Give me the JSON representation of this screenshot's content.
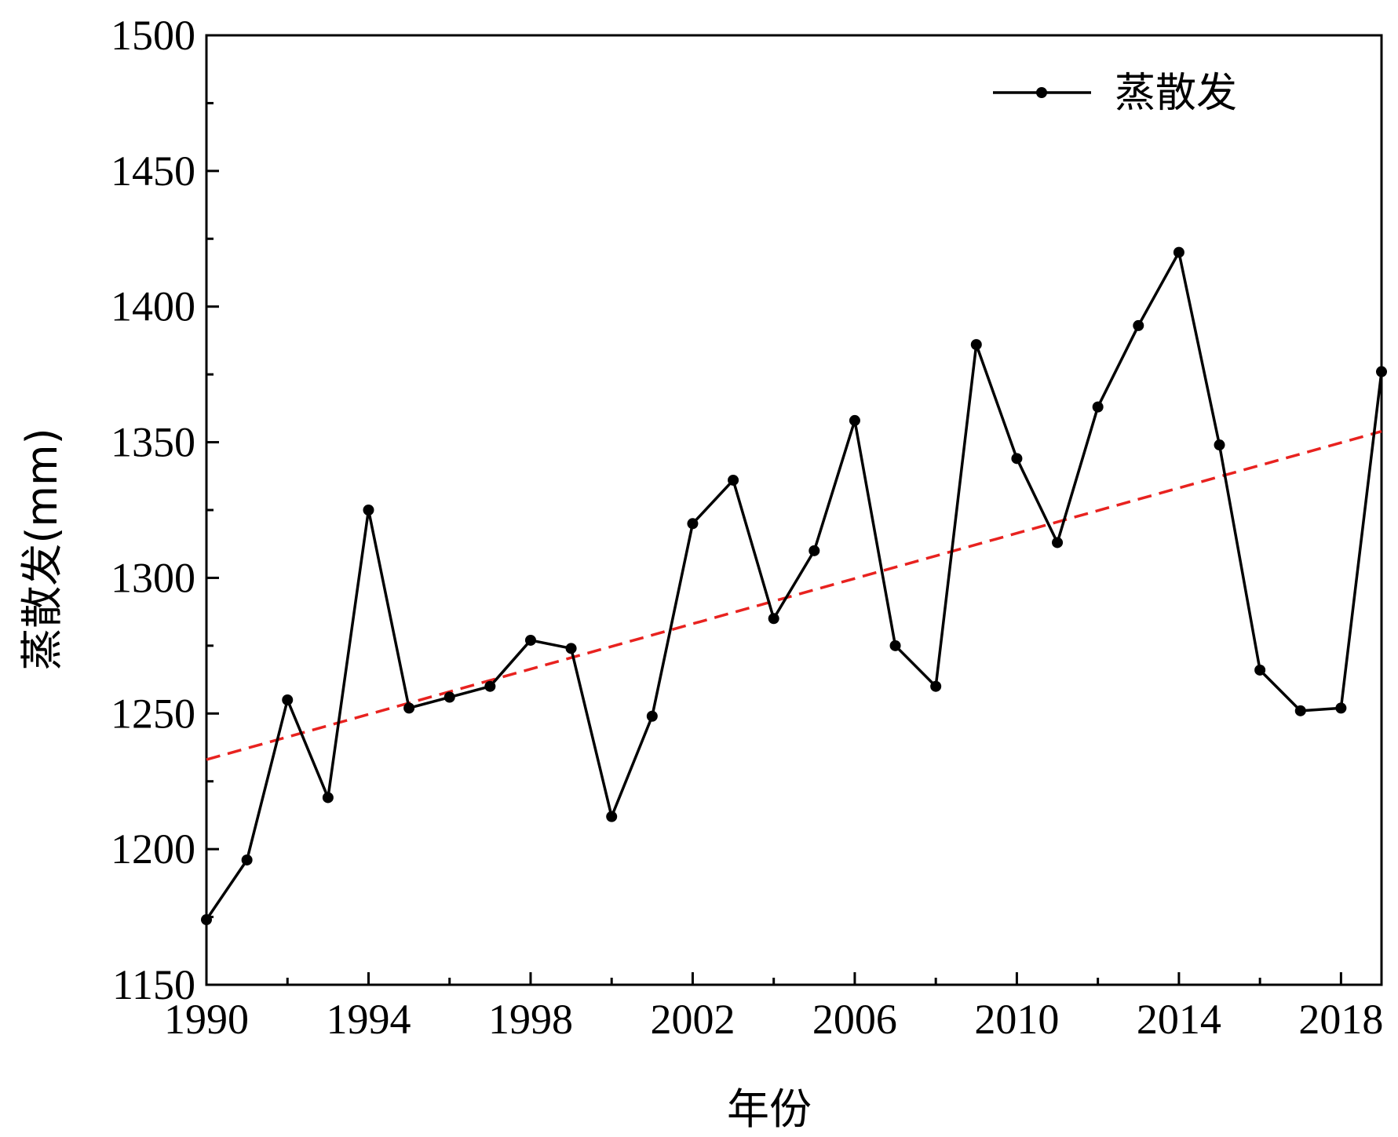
{
  "chart_data": {
    "type": "line",
    "title": "",
    "xlabel": "年份",
    "ylabel": "蒸散发(mm)",
    "xlim": [
      1990,
      2019
    ],
    "ylim": [
      1150,
      1500
    ],
    "x_ticks": [
      "1990",
      "1994",
      "1998",
      "2002",
      "2006",
      "2010",
      "2014",
      "2018"
    ],
    "y_ticks": [
      "1150",
      "1200",
      "1250",
      "1300",
      "1350",
      "1400",
      "1450",
      "1500"
    ],
    "legend_position": "top-right",
    "x": [
      1990,
      1991,
      1992,
      1993,
      1994,
      1995,
      1996,
      1997,
      1998,
      1999,
      2000,
      2001,
      2002,
      2003,
      2004,
      2005,
      2006,
      2007,
      2008,
      2009,
      2010,
      2011,
      2012,
      2013,
      2014,
      2015,
      2016,
      2017,
      2018,
      2019
    ],
    "series": [
      {
        "name": "蒸散发",
        "color": "#000000",
        "marker": "circle",
        "values": [
          1174,
          1196,
          1255,
          1219,
          1325,
          1252,
          1256,
          1260,
          1277,
          1274,
          1212,
          1249,
          1320,
          1336,
          1285,
          1310,
          1358,
          1275,
          1260,
          1386,
          1344,
          1313,
          1363,
          1393,
          1420,
          1349,
          1266,
          1251,
          1252,
          1376
        ]
      }
    ],
    "trendline": {
      "name": "trend",
      "style": "dashed",
      "color": "#e8221f",
      "start": [
        1990,
        1233
      ],
      "end": [
        2019,
        1354
      ]
    }
  }
}
